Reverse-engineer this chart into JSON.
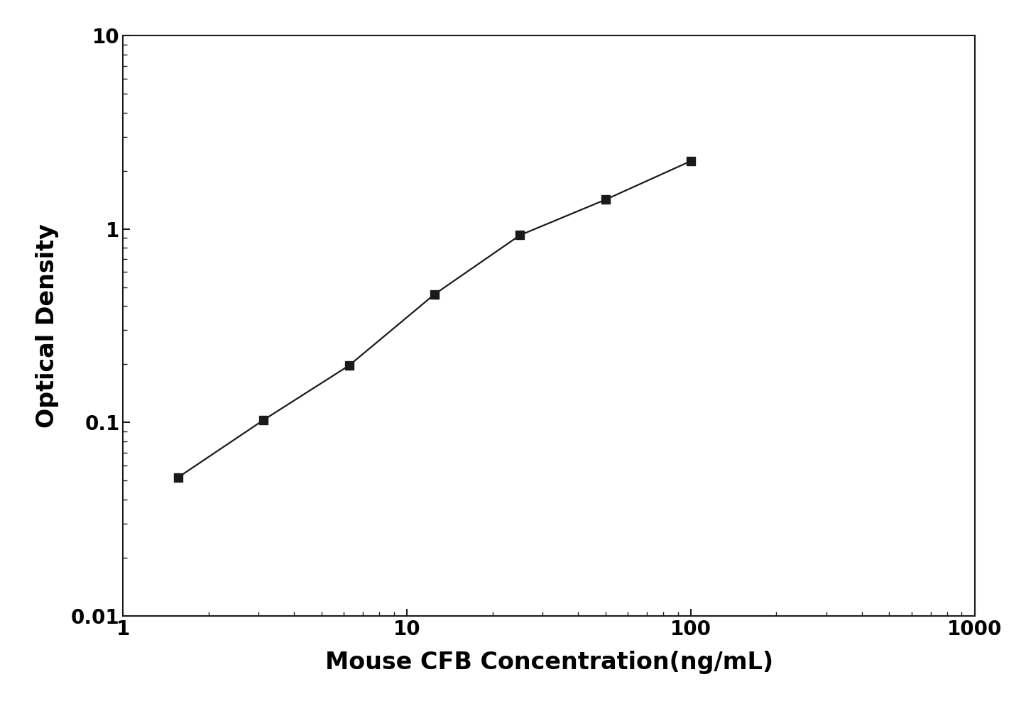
{
  "x_data": [
    1.563,
    3.125,
    6.25,
    12.5,
    25.0,
    50.0,
    100.0
  ],
  "y_data": [
    0.052,
    0.103,
    0.197,
    0.46,
    0.93,
    1.42,
    2.25
  ],
  "xlabel": "Mouse CFB Concentration(ng/mL)",
  "ylabel": "Optical Density",
  "xmin": 1.0,
  "xmax": 1000.0,
  "ymin": 0.01,
  "ymax": 10.0,
  "x_fit_start": 1.2,
  "x_fit_end": 130.0,
  "line_color": "#1a1a1a",
  "marker_color": "#1a1a1a",
  "marker": "s",
  "marker_size": 9,
  "line_width": 1.6,
  "xlabel_fontsize": 24,
  "ylabel_fontsize": 24,
  "tick_fontsize": 20,
  "background_color": "#ffffff",
  "spine_color": "#1a1a1a",
  "y_tick_labels": [
    0.01,
    0.1,
    1,
    10
  ],
  "x_tick_labels": [
    1,
    10,
    100,
    1000
  ]
}
